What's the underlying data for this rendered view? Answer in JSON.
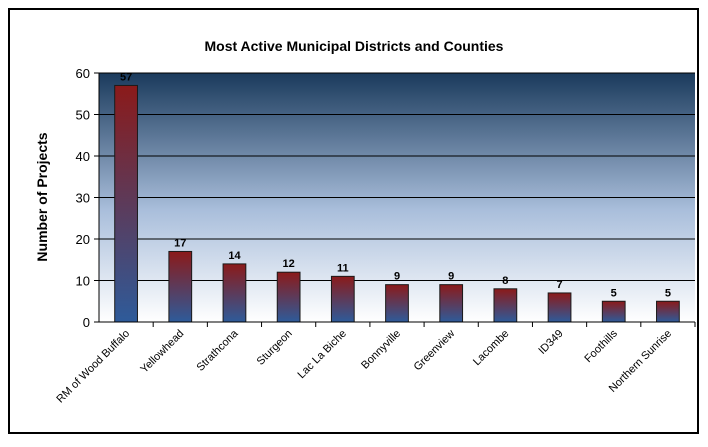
{
  "chart_data": {
    "type": "bar",
    "title": "Most Active Municipal Districts and Counties",
    "xlabel": "",
    "ylabel": "Number of Projects",
    "ylim": [
      0,
      60
    ],
    "yticks": [
      0,
      10,
      20,
      30,
      40,
      50,
      60
    ],
    "grid": true,
    "legend": "none",
    "categories": [
      "RM of Wood Buffalo",
      "Yellowhead",
      "Strathcona",
      "Sturgeon",
      "Lac La Biche",
      "Bonnyville",
      "Greenview",
      "Lacombe",
      "ID349",
      "Foothills",
      "Northern Sunrise"
    ],
    "values": [
      57,
      17,
      14,
      12,
      11,
      9,
      9,
      8,
      7,
      5,
      5
    ],
    "colors": {
      "bar_top": "#8b1a1a",
      "bar_bottom": "#2e5b9a",
      "plot_top": "#1a3a5c",
      "plot_bottom": "#ffffff",
      "border": "#000000"
    }
  }
}
